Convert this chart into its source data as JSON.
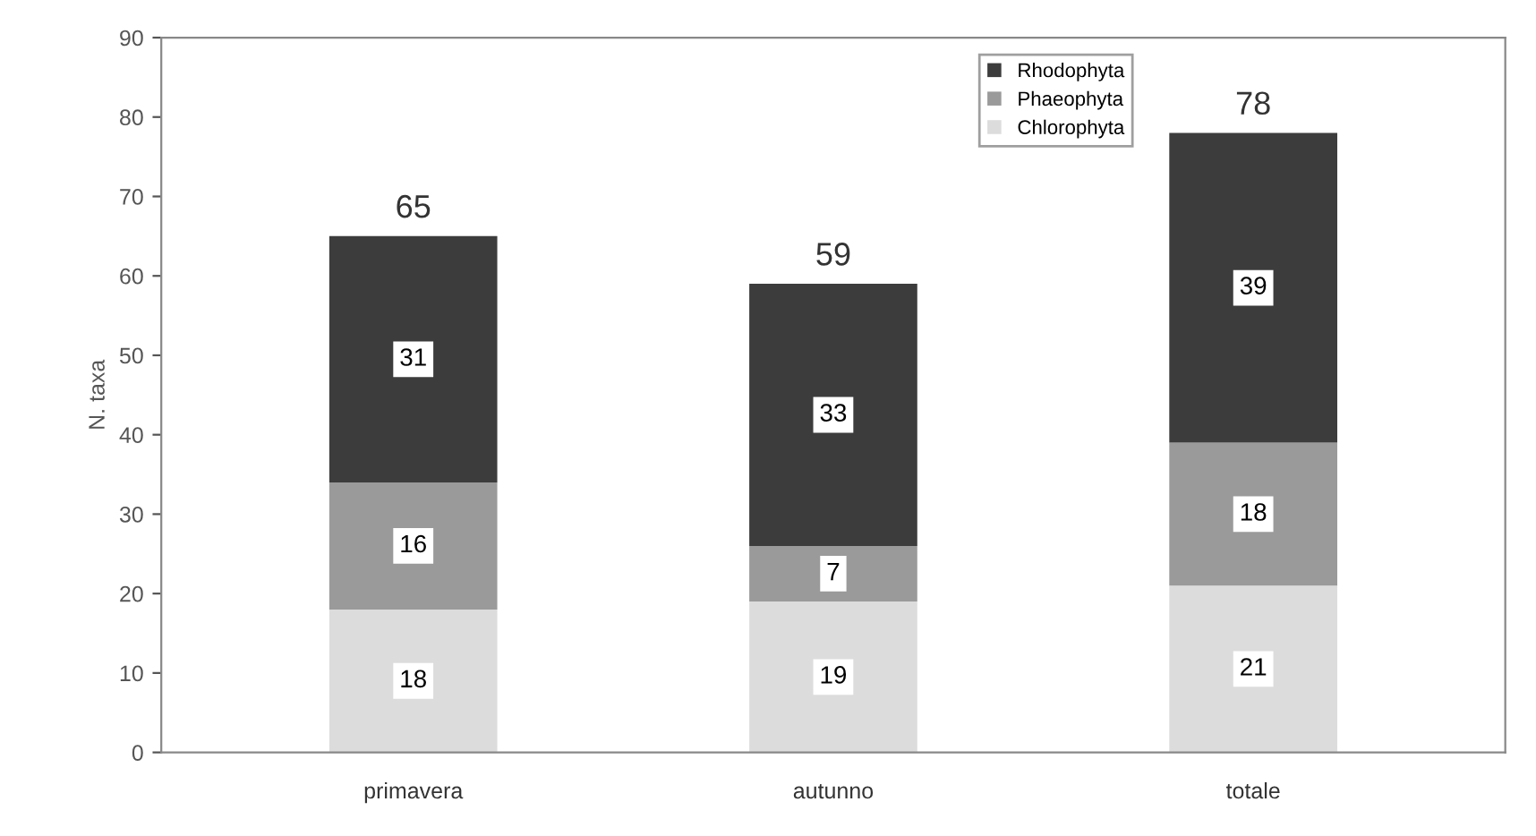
{
  "chart_data": {
    "type": "bar",
    "stacked": true,
    "ylabel": "N. taxa",
    "categories": [
      "primavera",
      "autunno",
      "totale"
    ],
    "series": [
      {
        "name": "Chlorophyta",
        "color": "#dcdcdc",
        "values": [
          18,
          19,
          21
        ]
      },
      {
        "name": "Phaeophyta",
        "color": "#9a9a9a",
        "values": [
          16,
          7,
          18
        ]
      },
      {
        "name": "Rhodophyta",
        "color": "#3c3c3c",
        "values": [
          31,
          33,
          39
        ]
      }
    ],
    "totals": [
      "65",
      "59",
      "78"
    ],
    "data_labels": true,
    "ylim": [
      0,
      90
    ],
    "yticks": [
      0,
      10,
      20,
      30,
      40,
      50,
      60,
      70,
      80,
      90
    ],
    "grid": false,
    "legend": "top right"
  }
}
